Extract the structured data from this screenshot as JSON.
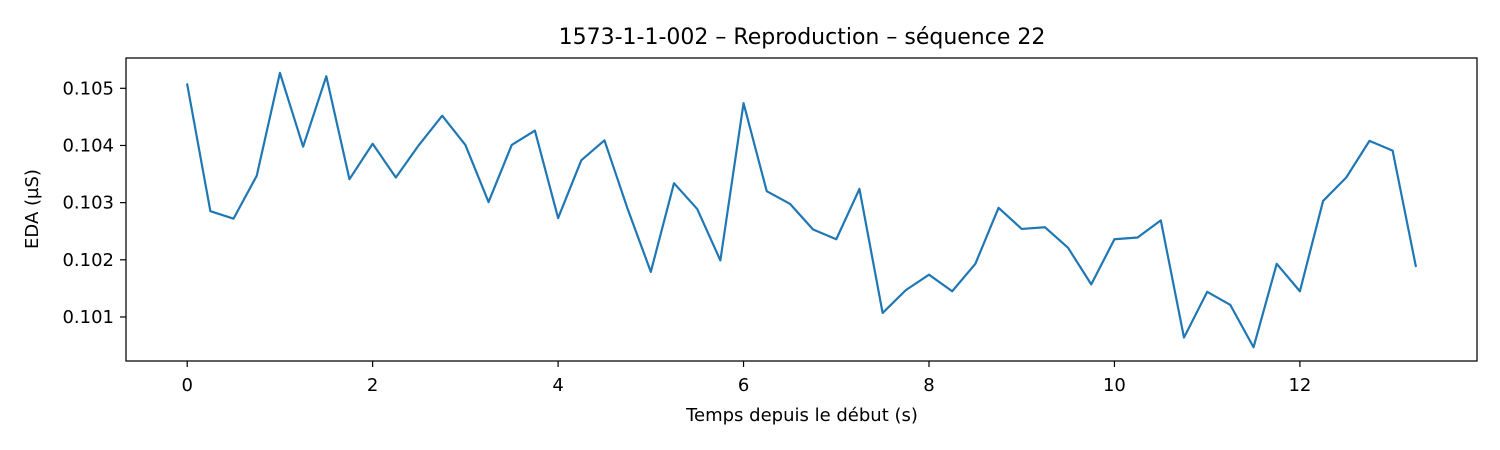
{
  "chart_data": {
    "type": "line",
    "title": "1573-1-1-002 – Reproduction – séquence 22",
    "xlabel": "Temps depuis le début (s)",
    "ylabel": "EDA (µS)",
    "xlim": [
      -0.66,
      13.91
    ],
    "ylim": [
      0.10023,
      0.10553
    ],
    "x_ticks": [
      0,
      2,
      4,
      6,
      8,
      10,
      12
    ],
    "x_tick_labels": [
      "0",
      "2",
      "4",
      "6",
      "8",
      "10",
      "12"
    ],
    "y_ticks": [
      0.101,
      0.102,
      0.103,
      0.104,
      0.105
    ],
    "y_tick_labels": [
      "0.101",
      "0.102",
      "0.103",
      "0.104",
      "0.105"
    ],
    "grid": false,
    "line_color": "#1f77b4",
    "series": [
      {
        "x": [
          0,
          0.25,
          0.5,
          0.75,
          1.0,
          1.25,
          1.5,
          1.75,
          2.0,
          2.25,
          2.5,
          2.75,
          3.0,
          3.25,
          3.5,
          3.75,
          4.0,
          4.25,
          4.5,
          4.75,
          5.0,
          5.25,
          5.5,
          5.75,
          6.0,
          6.25,
          6.5,
          6.75,
          7.0,
          7.25,
          7.5,
          7.75,
          8.0,
          8.25,
          8.5,
          8.75,
          9.0,
          9.25,
          9.5,
          9.75,
          10.0,
          10.25,
          10.5,
          10.75,
          11.0,
          11.25,
          11.5,
          11.75,
          12.0,
          12.25,
          12.5,
          12.75,
          13.0,
          13.25
        ],
        "values": [
          0.10507,
          0.10285,
          0.10272,
          0.10347,
          0.10527,
          0.10398,
          0.10521,
          0.10341,
          0.10403,
          0.10344,
          0.10401,
          0.10452,
          0.10401,
          0.10301,
          0.10401,
          0.10426,
          0.10273,
          0.10374,
          0.10409,
          0.10289,
          0.10179,
          0.10334,
          0.10289,
          0.10199,
          0.10474,
          0.1032,
          0.10298,
          0.10253,
          0.10236,
          0.10324,
          0.10107,
          0.10147,
          0.10174,
          0.10145,
          0.10193,
          0.10291,
          0.10254,
          0.10257,
          0.10221,
          0.10157,
          0.10236,
          0.10239,
          0.10269,
          0.10064,
          0.10144,
          0.10121,
          0.10047,
          0.10193,
          0.10145,
          0.10303,
          0.10344,
          0.10408,
          0.10391,
          0.10189
        ]
      }
    ]
  }
}
